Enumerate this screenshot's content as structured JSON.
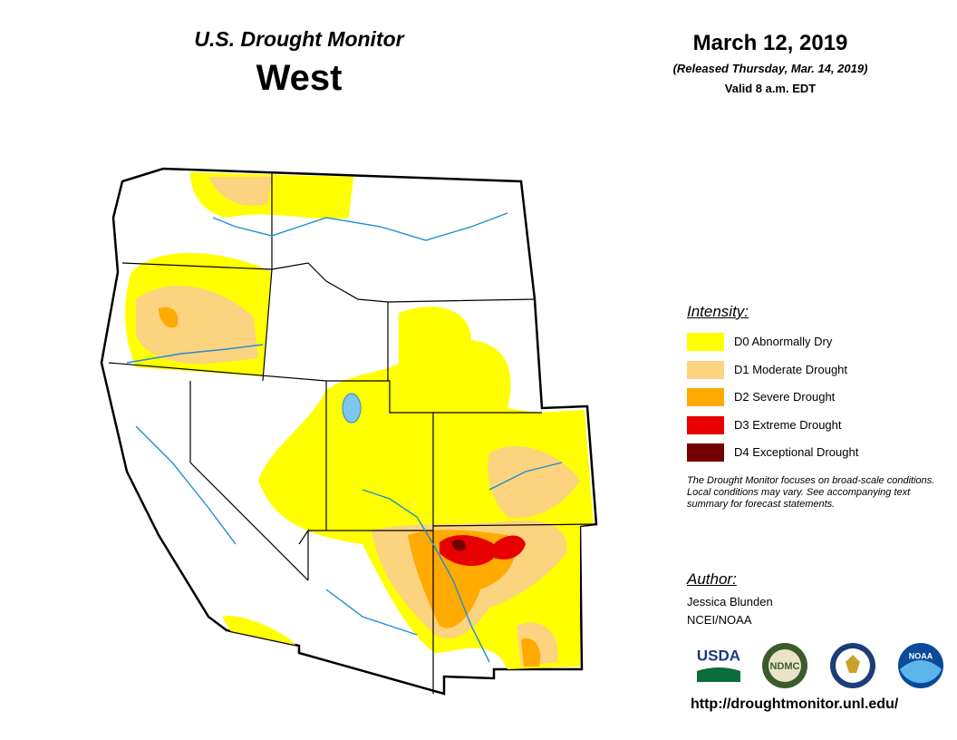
{
  "header": {
    "title": "U.S. Drought Monitor",
    "region": "West"
  },
  "date": {
    "date": "March 12, 2019",
    "released": "(Released Thursday, Mar. 14, 2019)",
    "valid": "Valid 8 a.m. EDT"
  },
  "legend": {
    "title": "Intensity:",
    "items": [
      {
        "label": "D0 Abnormally Dry",
        "color": "#ffff00"
      },
      {
        "label": "D1 Moderate Drought",
        "color": "#fcd37f"
      },
      {
        "label": "D2 Severe Drought",
        "color": "#ffaa00"
      },
      {
        "label": "D3 Extreme Drought",
        "color": "#e60000"
      },
      {
        "label": "D4 Exceptional Drought",
        "color": "#730000"
      }
    ]
  },
  "note": "The Drought Monitor focuses on broad-scale conditions. Local conditions may vary. See accompanying text summary for forecast statements.",
  "author": {
    "title": "Author:",
    "name": "Jessica Blunden",
    "org": "NCEI/NOAA"
  },
  "logos": [
    "USDA",
    "NDMC",
    "NOAA"
  ],
  "url": "http://droughtmonitor.unl.edu/"
}
